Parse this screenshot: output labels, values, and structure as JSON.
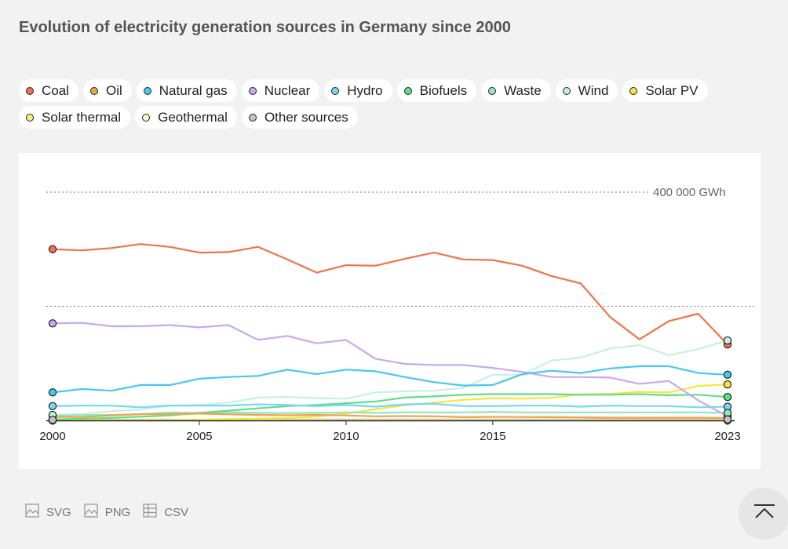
{
  "page": {
    "title": "Evolution of electricity generation sources in Germany since 2000"
  },
  "legend": {
    "rows": [
      [
        {
          "label": "Coal",
          "color": "#f3714a"
        },
        {
          "label": "Oil",
          "color": "#f2a24b"
        },
        {
          "label": "Natural gas",
          "color": "#45c8f1"
        },
        {
          "label": "Nuclear",
          "color": "#c8a9ef"
        },
        {
          "label": "Hydro",
          "color": "#73d9f5"
        },
        {
          "label": "Biofuels",
          "color": "#5fdf8a"
        },
        {
          "label": "Waste",
          "color": "#8fe6c2"
        },
        {
          "label": "Wind",
          "color": "#c6f1e1"
        },
        {
          "label": "Solar PV",
          "color": "#f5e63c"
        }
      ],
      [
        {
          "label": "Solar thermal",
          "color": "#f6f07a"
        },
        {
          "label": "Geothermal",
          "color": "#fbf7c5"
        },
        {
          "label": "Other sources",
          "color": "#c4c4c4"
        }
      ]
    ]
  },
  "chart_data": {
    "type": "line",
    "title": "Evolution of electricity generation sources in Germany since 2000",
    "unit": "GWh",
    "x": [
      2000,
      2001,
      2002,
      2003,
      2004,
      2005,
      2006,
      2007,
      2008,
      2009,
      2010,
      2011,
      2012,
      2013,
      2014,
      2015,
      2016,
      2017,
      2018,
      2019,
      2020,
      2021,
      2022,
      2023
    ],
    "x_ticks": [
      2000,
      2005,
      2010,
      2015,
      2023
    ],
    "ylim": [
      0,
      400000
    ],
    "reference_lines": [
      {
        "value": 400000,
        "label": "400 000 GWh"
      },
      {
        "value": 200000,
        "label": ""
      }
    ],
    "series": [
      {
        "name": "Coal",
        "color": "#f3714a",
        "endpoints": true,
        "values": [
          300000,
          298000,
          302000,
          309000,
          304000,
          294000,
          295000,
          304000,
          282000,
          259000,
          272000,
          271000,
          283000,
          294000,
          282000,
          281000,
          271000,
          253000,
          240000,
          181000,
          142000,
          174000,
          187000,
          133000
        ]
      },
      {
        "name": "Oil",
        "color": "#f2a24b",
        "endpoints": false,
        "values": [
          5900,
          5800,
          8800,
          10700,
          10900,
          11800,
          10600,
          9600,
          9200,
          9600,
          8700,
          7200,
          7600,
          7200,
          5700,
          6200,
          5900,
          5600,
          5200,
          4800,
          4700,
          4700,
          4700,
          4100
        ]
      },
      {
        "name": "Natural gas",
        "color": "#45c8f1",
        "endpoints": true,
        "values": [
          49000,
          55000,
          52000,
          62000,
          62000,
          73000,
          76000,
          78000,
          89000,
          81000,
          89000,
          86000,
          76000,
          67000,
          61000,
          62000,
          81000,
          87000,
          83000,
          91000,
          95000,
          95000,
          83000,
          80000
        ]
      },
      {
        "name": "Nuclear",
        "color": "#c8a9ef",
        "endpoints": true,
        "values": [
          170000,
          171000,
          165000,
          165000,
          167000,
          163000,
          167000,
          141000,
          148000,
          135000,
          141000,
          108000,
          99000,
          97000,
          97000,
          92000,
          85000,
          76000,
          76000,
          75000,
          64000,
          69000,
          35000,
          7000
        ]
      },
      {
        "name": "Hydro",
        "color": "#73d9f5",
        "endpoints": true,
        "values": [
          25000,
          26000,
          26000,
          23000,
          26000,
          26000,
          26000,
          28000,
          27000,
          25000,
          27000,
          24000,
          28000,
          29000,
          25000,
          25000,
          26000,
          26000,
          24000,
          26000,
          25000,
          25000,
          23000,
          24000
        ]
      },
      {
        "name": "Biofuels",
        "color": "#5fdf8a",
        "endpoints": true,
        "values": [
          1600,
          3000,
          4300,
          6500,
          8700,
          13000,
          17000,
          21000,
          25000,
          27000,
          30000,
          33000,
          40000,
          42000,
          45000,
          46000,
          46000,
          46000,
          45000,
          45000,
          46000,
          44000,
          45000,
          41000
        ]
      },
      {
        "name": "Waste",
        "color": "#8fe6c2",
        "endpoints": true,
        "values": [
          8000,
          9300,
          9500,
          11000,
          14000,
          13000,
          14000,
          13000,
          13000,
          13000,
          14000,
          13000,
          14000,
          14000,
          14000,
          15000,
          14000,
          14000,
          14000,
          14000,
          14000,
          14000,
          14000,
          13000
        ]
      },
      {
        "name": "Wind",
        "color": "#c6f1e1",
        "endpoints": true,
        "values": [
          9500,
          11000,
          16000,
          19000,
          26000,
          27000,
          31000,
          40000,
          41000,
          39000,
          38000,
          49000,
          51000,
          52000,
          57000,
          80000,
          80000,
          105000,
          110000,
          126000,
          132000,
          114000,
          125000,
          140000
        ]
      },
      {
        "name": "Solar PV",
        "color": "#f5e63c",
        "endpoints": true,
        "values": [
          60,
          80,
          160,
          310,
          560,
          1280,
          2200,
          3080,
          4420,
          6580,
          11730,
          19600,
          26380,
          31010,
          36060,
          38730,
          38100,
          39400,
          45800,
          46400,
          50000,
          49000,
          60300,
          63000
        ]
      },
      {
        "name": "Solar thermal",
        "color": "#f6f07a",
        "endpoints": true,
        "values": [
          0,
          0,
          0,
          0,
          0,
          0,
          0,
          0,
          0,
          0,
          0,
          0,
          0,
          0,
          0,
          0,
          0,
          0,
          0,
          0,
          0,
          0,
          0,
          0
        ]
      },
      {
        "name": "Geothermal",
        "color": "#fbf7c5",
        "endpoints": false,
        "values": [
          0,
          0,
          0,
          0,
          0.2,
          0.2,
          0.4,
          0.4,
          18,
          19,
          28,
          19,
          25,
          80,
          98,
          134,
          175,
          163,
          178,
          197,
          231,
          248,
          200,
          180
        ]
      },
      {
        "name": "Other sources",
        "color": "#c4c4c4",
        "endpoints": true,
        "values": [
          1000,
          1100,
          1100,
          1200,
          1300,
          1300,
          1300,
          1400,
          1500,
          1500,
          1600,
          1600,
          1700,
          1700,
          1700,
          1800,
          1800,
          1800,
          1800,
          1900,
          1900,
          1900,
          1900,
          1800
        ]
      }
    ]
  },
  "downloads": [
    {
      "label": "SVG",
      "icon": "image-icon"
    },
    {
      "label": "PNG",
      "icon": "image-icon"
    },
    {
      "label": "CSV",
      "icon": "table-icon"
    }
  ],
  "scroll_top": {
    "icon": "chevron-up-icon"
  }
}
